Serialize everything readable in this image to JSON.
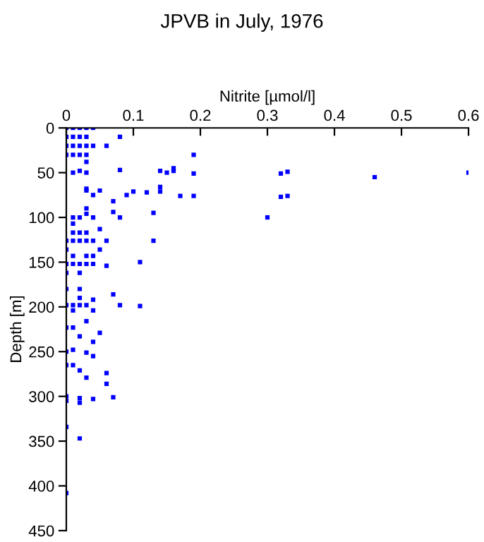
{
  "chart_data": {
    "type": "scatter",
    "title": "JPVB in July, 1976",
    "xlabel": "Nitrite [µmol/l]",
    "ylabel": "Depth [m]",
    "xlim": [
      0,
      0.6
    ],
    "xticks": [
      {
        "value": 0,
        "label": "0"
      },
      0.1,
      0.2,
      0.3,
      0.4,
      0.5,
      0.6
    ],
    "ylim": [
      450,
      0
    ],
    "yticks": [
      0,
      50,
      100,
      150,
      200,
      250,
      300,
      350,
      400,
      450
    ],
    "marker": "square",
    "grid": false,
    "series": [
      {
        "color": "#0000ff",
        "x": [
          0,
          0.01,
          0.02,
          0.03,
          0.04,
          0,
          0.01,
          0.02,
          0.03,
          0.08,
          0,
          0.01,
          0.02,
          0.03,
          0.04,
          0.06,
          0,
          0.01,
          0.02,
          0.03,
          0.19,
          0.03,
          0.01,
          0.02,
          0.03,
          0.08,
          0.14,
          0.15,
          0.16,
          0.16,
          0.19,
          0.32,
          0.33,
          0.46,
          0.6,
          0.03,
          0.03,
          0.04,
          0.05,
          0.07,
          0.09,
          0.1,
          0.12,
          0.14,
          0.14,
          0.17,
          0.19,
          0.32,
          0.33,
          0.03,
          0.03,
          0.07,
          0.08,
          0.13,
          0.01,
          0.02,
          0.04,
          0.3,
          0.01,
          0.01,
          0.02,
          0.03,
          0.05,
          0,
          0.01,
          0.02,
          0.03,
          0.04,
          0.06,
          0.13,
          0,
          0.05,
          0.01,
          0.03,
          0.04,
          0,
          0.01,
          0.02,
          0.03,
          0.04,
          0.06,
          0.11,
          0,
          0.02,
          0,
          0.02,
          0.02,
          0.04,
          0.07,
          0,
          0.01,
          0.02,
          0.03,
          0.08,
          0.11,
          0.01,
          0.04,
          0.03,
          0,
          0.01,
          0.05,
          0.02,
          0.04,
          0,
          0.01,
          0.03,
          0.04,
          0,
          0.01,
          0.02,
          0.06,
          0.03,
          0.06,
          0,
          0,
          0.02,
          0.02,
          0.04,
          0.07,
          0,
          0.02,
          0
        ],
        "values": [
          0,
          0,
          0,
          0,
          0,
          10,
          10,
          10,
          10,
          10,
          20,
          20,
          20,
          20,
          20,
          20,
          30,
          30,
          30,
          30,
          30,
          38,
          50,
          48,
          50,
          47,
          48,
          50,
          45,
          48,
          51,
          51,
          49,
          55,
          50,
          68,
          70,
          75,
          70,
          82,
          75,
          71,
          72,
          66,
          71,
          76,
          76,
          77,
          76,
          90,
          96,
          94,
          100,
          95,
          100,
          100,
          100,
          100,
          107,
          117,
          117,
          117,
          113,
          126,
          126,
          126,
          126,
          126,
          126,
          126,
          136,
          136,
          143,
          143,
          143,
          152,
          152,
          152,
          152,
          152,
          154,
          150,
          162,
          162,
          180,
          180,
          190,
          192,
          186,
          198,
          198,
          198,
          198,
          198,
          199,
          204,
          204,
          216,
          223,
          223,
          229,
          233,
          239,
          250,
          248,
          251,
          255,
          265,
          265,
          271,
          274,
          279,
          286,
          300,
          305,
          302,
          307,
          303,
          301,
          334,
          347,
          408
        ]
      }
    ]
  }
}
